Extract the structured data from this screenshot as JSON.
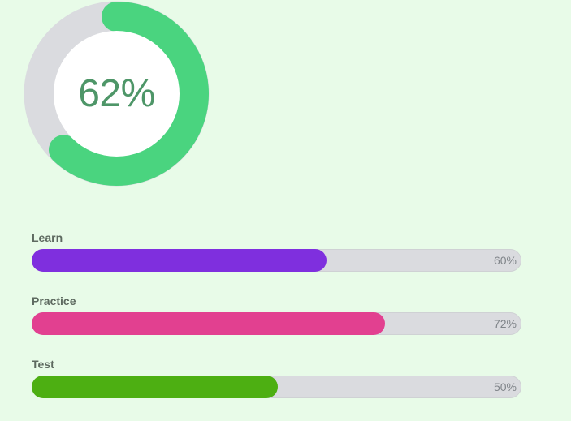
{
  "overall": {
    "percent": 62,
    "label": "62%",
    "color": "#4ad47f",
    "track_color": "#dadbdf"
  },
  "bars": [
    {
      "label": "Learn",
      "percent": 60,
      "percent_label": "60%",
      "color": "#7f2fde"
    },
    {
      "label": "Practice",
      "percent": 72,
      "percent_label": "72%",
      "color": "#e24090"
    },
    {
      "label": "Test",
      "percent": 50,
      "percent_label": "50%",
      "color": "#4daf12"
    }
  ]
}
